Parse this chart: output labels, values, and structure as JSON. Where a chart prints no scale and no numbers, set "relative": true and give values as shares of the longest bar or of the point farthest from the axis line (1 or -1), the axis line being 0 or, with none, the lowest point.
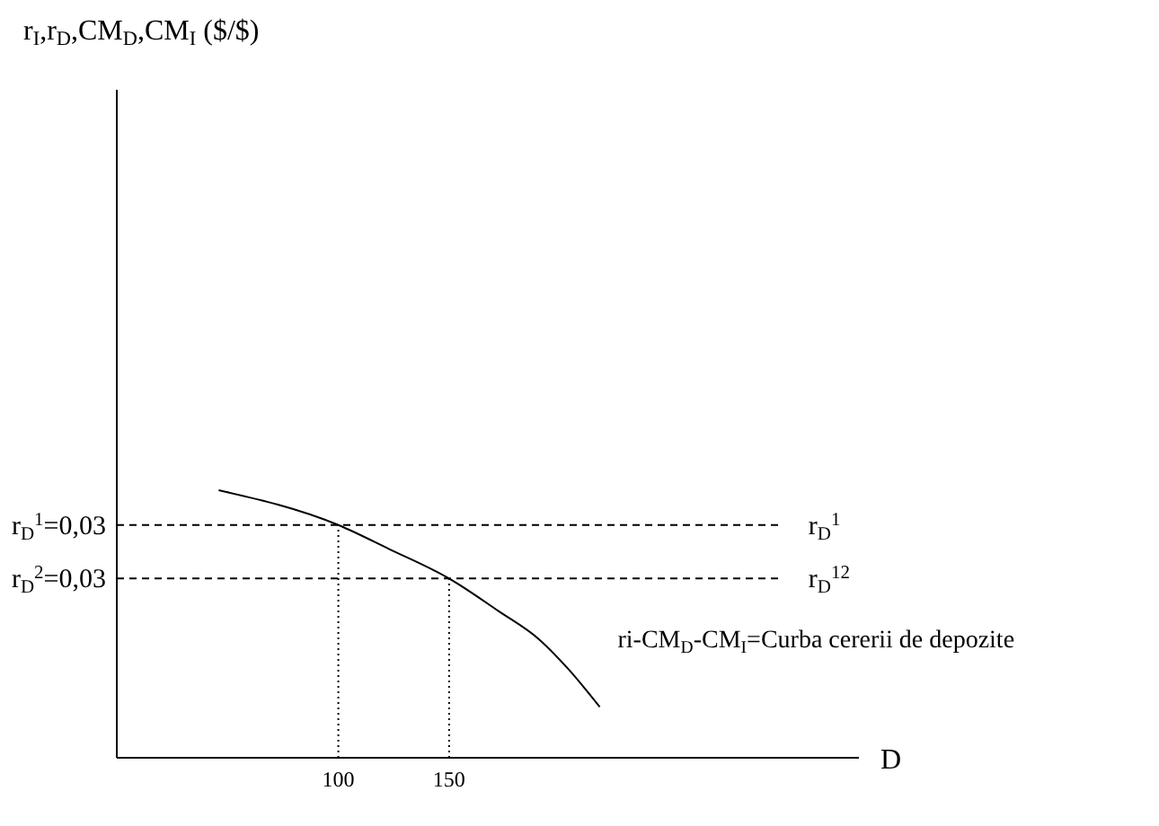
{
  "chart_data": {
    "type": "line",
    "relative": true,
    "ylabel": "r$_{I}$,r$_{D}$,CM$_{D}$,CM$_{I}$ ($/$)",
    "xlabel": "D",
    "xlim": [
      0,
      335
    ],
    "xticks": [
      100,
      150
    ],
    "series": [
      {
        "name": "ri-CM$_{D}$-CM$_{I}$=Curba cererii de depozite",
        "color": "#000000",
        "line_style": "solid",
        "x": [
          46,
          100,
          123,
          150,
          172,
          191,
          204,
          218
        ],
        "values": [
          1,
          0.87,
          0.78,
          0.67,
          0.55,
          0.44,
          0.33,
          0.19
        ]
      },
      {
        "name": "r$_{D}$$^{1}$",
        "color": "#000000",
        "line_style": "dashed",
        "x": [
          0,
          300
        ],
        "values": [
          0.87,
          0.87
        ]
      },
      {
        "name": "r$_{D}$$^{12}$",
        "color": "#000000",
        "line_style": "dashed",
        "x": [
          0,
          300
        ],
        "values": [
          0.67,
          0.67
        ]
      },
      {
        "color": "#000000",
        "line_style": "dotted",
        "x": [
          100,
          100
        ],
        "values": [
          0,
          0.87
        ]
      },
      {
        "color": "#000000",
        "line_style": "dotted",
        "x": [
          150,
          150
        ],
        "values": [
          0,
          0.67
        ]
      }
    ],
    "annotations": [
      {
        "text": "r$_{D}$$^{1}$=0,03",
        "x": 0,
        "y": 0.87
      },
      {
        "text": "r$_{D}$$^{2}$=0,03",
        "x": 0,
        "y": 0.67
      }
    ]
  }
}
